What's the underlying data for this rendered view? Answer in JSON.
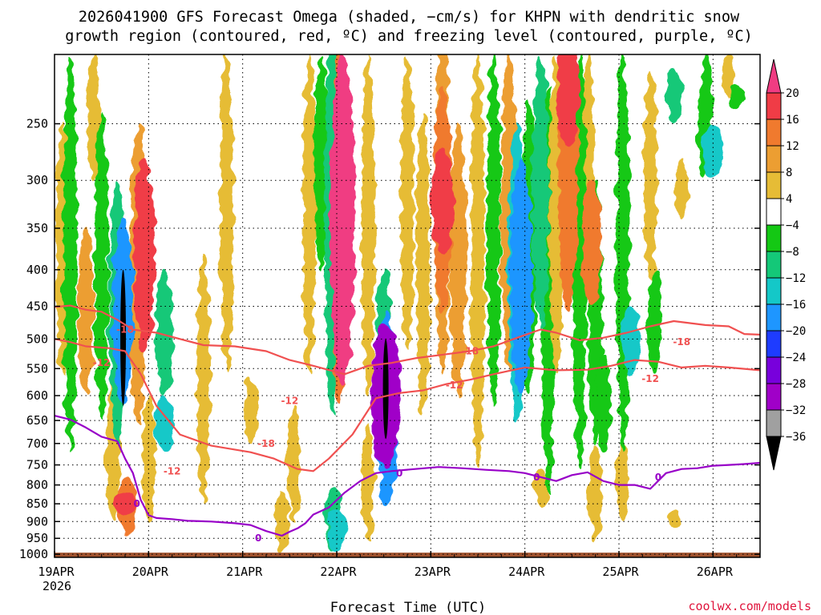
{
  "title": {
    "line1": "2026041900 GFS Forecast Omega (shaded, −cm/s) for KHPN with dendritic snow",
    "line2": "growth region (contoured, red, ºC) and freezing level (contoured, purple, ºC)"
  },
  "credit": "coolwx.com/models",
  "colors": {
    "dgz_contour": "#f05050",
    "freezing_contour": "#9800c8",
    "ground": "#a0522d"
  },
  "chart_data": {
    "type": "heatmap",
    "title": "2026041900 GFS Forecast Omega (shaded, −cm/s) for KHPN with dendritic snow growth region (contoured, red, ºC) and freezing level (contoured, purple, ºC)",
    "xlabel": "Forecast Time (UTC)",
    "ylabel": "",
    "x_ticks": [
      "19APR",
      "20APR",
      "21APR",
      "22APR",
      "23APR",
      "24APR",
      "25APR",
      "26APR"
    ],
    "x_tick_hours": [
      0,
      24,
      48,
      72,
      96,
      120,
      144,
      168
    ],
    "x_year_label": "2026",
    "xlim_hours": [
      0,
      180
    ],
    "y_ticks": [
      250,
      300,
      350,
      400,
      450,
      500,
      550,
      600,
      650,
      700,
      750,
      800,
      850,
      900,
      950,
      1000
    ],
    "ylim_hpa": [
      200,
      1010
    ],
    "grid": true,
    "colorbar": {
      "labels": [
        "20",
        "16",
        "12",
        "8",
        "4",
        "−4",
        "−8",
        "−12",
        "−16",
        "−20",
        "−24",
        "−28",
        "−32",
        "−36"
      ],
      "bins": [
        {
          "range": "above 20",
          "color": "#f03c82"
        },
        {
          "range": "16 to 20",
          "color": "#f03c46"
        },
        {
          "range": "12 to 16",
          "color": "#f07a2e"
        },
        {
          "range": "8 to 12",
          "color": "#ec9e32"
        },
        {
          "range": "4 to 8",
          "color": "#e6bc36"
        },
        {
          "range": "0 to 4",
          "color": "#e8dc3c"
        },
        {
          "range": "-4 to 4",
          "color": "#ffffff"
        },
        {
          "range": "-8 to -4",
          "color": "#14c814"
        },
        {
          "range": "-12 to -8",
          "color": "#14c878"
        },
        {
          "range": "-16 to -12",
          "color": "#14c8c8"
        },
        {
          "range": "-20 to -16",
          "color": "#1e96ff"
        },
        {
          "range": "-24 to -20",
          "color": "#1e3cff"
        },
        {
          "range": "-28 to -24",
          "color": "#7800dc"
        },
        {
          "range": "-32 to -28",
          "color": "#a000c8"
        },
        {
          "range": "-36 to -32",
          "color": "#a0a0a0"
        },
        {
          "range": "below -36",
          "color": "#000000"
        }
      ]
    },
    "contours": [
      {
        "name": "-18",
        "color": "#f05050",
        "points": [
          [
            0,
            451
          ],
          [
            4,
            449
          ],
          [
            8,
            455
          ],
          [
            12,
            458
          ],
          [
            16,
            470
          ],
          [
            20,
            485
          ],
          [
            26,
            490
          ],
          [
            32,
            500
          ],
          [
            38,
            510
          ],
          [
            46,
            512
          ],
          [
            54,
            520
          ],
          [
            60,
            535
          ],
          [
            66,
            545
          ],
          [
            74,
            560
          ],
          [
            80,
            545
          ],
          [
            86,
            540
          ],
          [
            92,
            532
          ],
          [
            100,
            525
          ],
          [
            106,
            520
          ],
          [
            112,
            512
          ],
          [
            118,
            498
          ],
          [
            124,
            485
          ],
          [
            128,
            490
          ],
          [
            134,
            502
          ],
          [
            140,
            498
          ],
          [
            146,
            490
          ],
          [
            152,
            480
          ],
          [
            158,
            472
          ],
          [
            166,
            478
          ],
          [
            172,
            480
          ],
          [
            176,
            492
          ],
          [
            180,
            493
          ]
        ],
        "labels": [
          {
            "x": 18,
            "p": 485
          },
          {
            "x": 54,
            "p": 700
          },
          {
            "x": 106,
            "p": 520
          },
          {
            "x": 160,
            "p": 505
          }
        ]
      },
      {
        "name": "-12",
        "color": "#f05050",
        "points": [
          [
            0,
            500
          ],
          [
            4,
            505
          ],
          [
            8,
            512
          ],
          [
            14,
            515
          ],
          [
            18,
            520
          ],
          [
            22,
            560
          ],
          [
            26,
            620
          ],
          [
            32,
            680
          ],
          [
            40,
            705
          ],
          [
            50,
            720
          ],
          [
            56,
            735
          ],
          [
            62,
            760
          ],
          [
            66,
            765
          ],
          [
            70,
            735
          ],
          [
            76,
            680
          ],
          [
            82,
            605
          ],
          [
            88,
            595
          ],
          [
            94,
            590
          ],
          [
            100,
            578
          ],
          [
            106,
            570
          ],
          [
            112,
            560
          ],
          [
            120,
            548
          ],
          [
            128,
            553
          ],
          [
            136,
            552
          ],
          [
            142,
            545
          ],
          [
            148,
            535
          ],
          [
            154,
            538
          ],
          [
            160,
            548
          ],
          [
            166,
            545
          ],
          [
            172,
            548
          ],
          [
            180,
            553
          ]
        ],
        "labels": [
          {
            "x": 12,
            "p": 540
          },
          {
            "x": 30,
            "p": 765
          },
          {
            "x": 60,
            "p": 610
          },
          {
            "x": 102,
            "p": 580
          },
          {
            "x": 152,
            "p": 568
          }
        ]
      },
      {
        "name": "0",
        "color": "#9800c8",
        "points": [
          [
            0,
            640
          ],
          [
            4,
            648
          ],
          [
            8,
            665
          ],
          [
            12,
            685
          ],
          [
            16,
            695
          ],
          [
            18,
            735
          ],
          [
            20,
            770
          ],
          [
            22,
            840
          ],
          [
            24,
            882
          ],
          [
            26,
            890
          ],
          [
            30,
            893
          ],
          [
            34,
            898
          ],
          [
            40,
            900
          ],
          [
            46,
            905
          ],
          [
            50,
            910
          ],
          [
            54,
            928
          ],
          [
            58,
            942
          ],
          [
            60,
            930
          ],
          [
            62,
            920
          ],
          [
            64,
            905
          ],
          [
            66,
            880
          ],
          [
            70,
            860
          ],
          [
            74,
            820
          ],
          [
            78,
            790
          ],
          [
            82,
            770
          ],
          [
            86,
            765
          ],
          [
            92,
            760
          ],
          [
            98,
            755
          ],
          [
            104,
            758
          ],
          [
            110,
            762
          ],
          [
            116,
            765
          ],
          [
            120,
            770
          ],
          [
            124,
            780
          ],
          [
            128,
            790
          ],
          [
            132,
            775
          ],
          [
            136,
            768
          ],
          [
            140,
            790
          ],
          [
            144,
            800
          ],
          [
            148,
            800
          ],
          [
            152,
            810
          ],
          [
            156,
            770
          ],
          [
            160,
            760
          ],
          [
            164,
            758
          ],
          [
            168,
            752
          ],
          [
            172,
            750
          ],
          [
            176,
            748
          ],
          [
            180,
            745
          ]
        ],
        "labels": [
          {
            "x": 21,
            "p": 850
          },
          {
            "x": 52,
            "p": 950
          },
          {
            "x": 88,
            "p": 770
          },
          {
            "x": 123,
            "p": 780
          },
          {
            "x": 154,
            "p": 780
          }
        ]
      }
    ],
    "omega_features": [
      {
        "x": 2,
        "p_top": 250,
        "p_bot": 560,
        "value": 6
      },
      {
        "x": 4,
        "p_top": 200,
        "p_bot": 720,
        "value": -6
      },
      {
        "x": 8,
        "p_top": 350,
        "p_bot": 600,
        "value": 9
      },
      {
        "x": 10,
        "p_top": 200,
        "p_bot": 300,
        "value": 5
      },
      {
        "x": 12,
        "p_top": 240,
        "p_bot": 650,
        "value": -6
      },
      {
        "x": 15,
        "p_top": 560,
        "p_bot": 900,
        "value": 6
      },
      {
        "x": 16,
        "p_top": 300,
        "p_bot": 700,
        "value": -10
      },
      {
        "x": 17.5,
        "p_top": 400,
        "p_bot": 620,
        "value": -38
      },
      {
        "x": 17.5,
        "p_top": 340,
        "p_bot": 620,
        "value": -16
      },
      {
        "x": 18.5,
        "p_top": 780,
        "p_bot": 940,
        "value": 14
      },
      {
        "x": 18,
        "p_top": 820,
        "p_bot": 880,
        "value": 18
      },
      {
        "x": 21.5,
        "p_top": 250,
        "p_bot": 660,
        "value": 10
      },
      {
        "x": 23,
        "p_top": 280,
        "p_bot": 520,
        "value": 16
      },
      {
        "x": 28,
        "p_top": 400,
        "p_bot": 600,
        "value": -10
      },
      {
        "x": 28,
        "p_top": 600,
        "p_bot": 720,
        "value": -14
      },
      {
        "x": 24,
        "p_top": 600,
        "p_bot": 900,
        "value": 5
      },
      {
        "x": 38,
        "p_top": 380,
        "p_bot": 850,
        "value": 5
      },
      {
        "x": 44,
        "p_top": 200,
        "p_bot": 560,
        "value": 5
      },
      {
        "x": 50,
        "p_top": 560,
        "p_bot": 700,
        "value": 5
      },
      {
        "x": 58,
        "p_top": 820,
        "p_bot": 990,
        "value": 6
      },
      {
        "x": 61,
        "p_top": 620,
        "p_bot": 900,
        "value": 5
      },
      {
        "x": 65,
        "p_top": 200,
        "p_bot": 560,
        "value": 5
      },
      {
        "x": 68,
        "p_top": 200,
        "p_bot": 400,
        "value": -6
      },
      {
        "x": 71,
        "p_top": 180,
        "p_bot": 640,
        "value": -10
      },
      {
        "x": 73,
        "p_top": 190,
        "p_bot": 620,
        "value": 12
      },
      {
        "x": 73.5,
        "p_top": 200,
        "p_bot": 580,
        "value": 22
      },
      {
        "x": 71,
        "p_top": 800,
        "p_bot": 990,
        "value": -10
      },
      {
        "x": 72,
        "p_top": 860,
        "p_bot": 990,
        "value": -14
      },
      {
        "x": 80,
        "p_top": 200,
        "p_bot": 600,
        "value": 5
      },
      {
        "x": 84,
        "p_top": 400,
        "p_bot": 600,
        "value": -8
      },
      {
        "x": 84.5,
        "p_top": 500,
        "p_bot": 690,
        "value": -38
      },
      {
        "x": 84.5,
        "p_top": 470,
        "p_bot": 760,
        "value": -28
      },
      {
        "x": 85,
        "p_top": 460,
        "p_bot": 860,
        "value": -16
      },
      {
        "x": 80,
        "p_top": 660,
        "p_bot": 950,
        "value": 5
      },
      {
        "x": 90,
        "p_top": 200,
        "p_bot": 520,
        "value": 5
      },
      {
        "x": 94,
        "p_top": 240,
        "p_bot": 640,
        "value": 6
      },
      {
        "x": 99,
        "p_top": 180,
        "p_bot": 560,
        "value": 8
      },
      {
        "x": 99,
        "p_top": 220,
        "p_bot": 460,
        "value": 12
      },
      {
        "x": 99,
        "p_top": 270,
        "p_bot": 380,
        "value": 18
      },
      {
        "x": 103,
        "p_top": 250,
        "p_bot": 600,
        "value": 10
      },
      {
        "x": 108,
        "p_top": 200,
        "p_bot": 760,
        "value": 6
      },
      {
        "x": 112,
        "p_top": 200,
        "p_bot": 620,
        "value": -6
      },
      {
        "x": 116,
        "p_top": 200,
        "p_bot": 560,
        "value": 10
      },
      {
        "x": 118,
        "p_top": 250,
        "p_bot": 650,
        "value": -12
      },
      {
        "x": 119,
        "p_top": 280,
        "p_bot": 600,
        "value": -18
      },
      {
        "x": 121,
        "p_top": 230,
        "p_bot": 600,
        "value": -6
      },
      {
        "x": 124,
        "p_top": 200,
        "p_bot": 480,
        "value": -10
      },
      {
        "x": 126,
        "p_top": 220,
        "p_bot": 820,
        "value": -6
      },
      {
        "x": 128,
        "p_top": 200,
        "p_bot": 560,
        "value": 6
      },
      {
        "x": 131,
        "p_top": 180,
        "p_bot": 460,
        "value": 14
      },
      {
        "x": 131,
        "p_top": 190,
        "p_bot": 270,
        "value": 18
      },
      {
        "x": 134,
        "p_top": 200,
        "p_bot": 760,
        "value": -6
      },
      {
        "x": 136,
        "p_top": 200,
        "p_bot": 400,
        "value": 5
      },
      {
        "x": 137,
        "p_top": 300,
        "p_bot": 450,
        "value": 14
      },
      {
        "x": 138,
        "p_top": 300,
        "p_bot": 700,
        "value": -6
      },
      {
        "x": 140,
        "p_top": 520,
        "p_bot": 720,
        "value": -6
      },
      {
        "x": 145,
        "p_top": 200,
        "p_bot": 720,
        "value": -6
      },
      {
        "x": 147,
        "p_top": 450,
        "p_bot": 560,
        "value": -14
      },
      {
        "x": 145,
        "p_top": 700,
        "p_bot": 900,
        "value": 5
      },
      {
        "x": 152,
        "p_top": 210,
        "p_bot": 420,
        "value": 5
      },
      {
        "x": 153,
        "p_top": 400,
        "p_bot": 560,
        "value": -6
      },
      {
        "x": 158,
        "p_top": 210,
        "p_bot": 250,
        "value": -10
      },
      {
        "x": 160,
        "p_top": 280,
        "p_bot": 340,
        "value": 5
      },
      {
        "x": 166,
        "p_top": 200,
        "p_bot": 300,
        "value": -6
      },
      {
        "x": 168,
        "p_top": 250,
        "p_bot": 300,
        "value": -14
      },
      {
        "x": 172,
        "p_top": 200,
        "p_bot": 230,
        "value": 5
      },
      {
        "x": 174,
        "p_top": 220,
        "p_bot": 240,
        "value": -6
      },
      {
        "x": 158,
        "p_top": 860,
        "p_bot": 920,
        "value": 5
      },
      {
        "x": 138,
        "p_top": 700,
        "p_bot": 960,
        "value": 5
      },
      {
        "x": 124,
        "p_top": 760,
        "p_bot": 860,
        "value": 5
      }
    ]
  }
}
